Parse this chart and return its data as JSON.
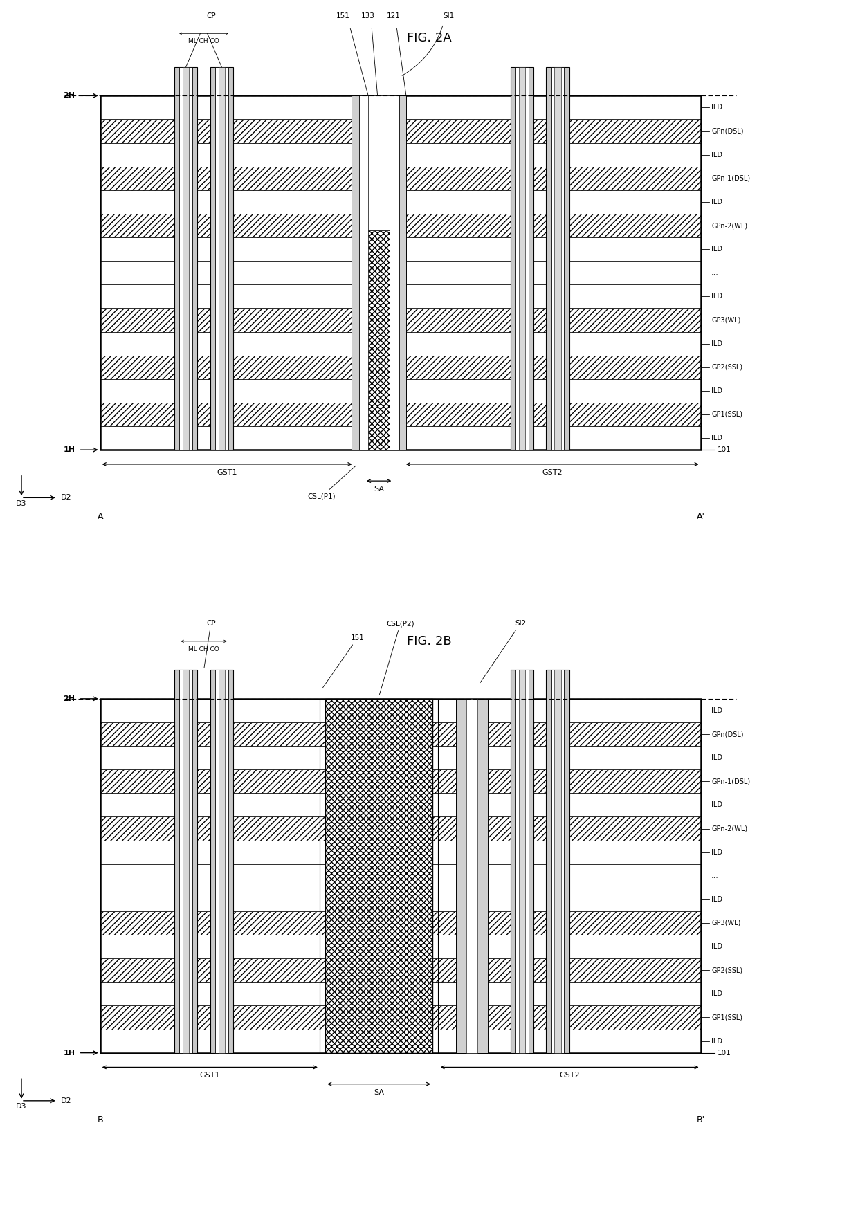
{
  "fig_title_a": "FIG. 2A",
  "fig_title_b": "FIG. 2B",
  "bg_color": "#ffffff",
  "layer_labels_right": [
    "ILD",
    "GPn(DSL)",
    "ILD",
    "GPn-1(DSL)",
    "ILD",
    "GPn-2(WL)",
    "ILD",
    "...",
    "ILD",
    "GP3(WL)",
    "ILD",
    "GP2(SSL)",
    "ILD",
    "GP1(SSL)",
    "ILD"
  ],
  "corner_labels_a": [
    "A",
    "A'"
  ],
  "corner_labels_b": [
    "B",
    "B'"
  ],
  "ref_num": "101",
  "n_layers": 15
}
